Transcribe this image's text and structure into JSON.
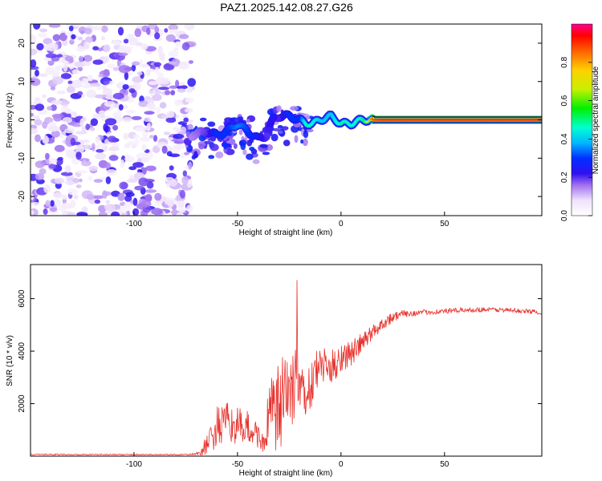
{
  "title": "PAZ1.2025.142.08.27.G26",
  "chart_data": [
    {
      "type": "heatmap",
      "xlabel": "Height of straight line (km)",
      "ylabel": "Frequency (Hz)",
      "xlim": [
        -150,
        97
      ],
      "ylim": [
        -25,
        25
      ],
      "xticks": [
        -100,
        -50,
        0,
        50
      ],
      "yticks": [
        -20,
        -10,
        0,
        10,
        20
      ],
      "xtick_labels": [
        "-100",
        "-50",
        "0",
        "50"
      ],
      "ytick_labels": [
        "-20",
        "-10",
        "0",
        "10",
        "20"
      ],
      "colorbar": {
        "label": "Normalized spectral amplitude",
        "range": [
          0,
          1
        ],
        "ticks": [
          0.0,
          0.2,
          0.4,
          0.6,
          0.8
        ],
        "tick_labels": [
          "0.0",
          "0.2",
          "0.4",
          "0.6",
          "0.8"
        ]
      },
      "noise_region": {
        "x": [
          -150,
          -72
        ],
        "y": [
          -25,
          25
        ],
        "amplitude": [
          0.0,
          0.2
        ]
      },
      "signal_ridge": {
        "x": [
          -72,
          -65,
          -60,
          -55,
          -50,
          -45,
          -40,
          -36,
          -33,
          -30,
          -25,
          -20,
          -17,
          -14,
          -10,
          -5,
          0,
          5,
          10,
          15,
          20,
          30,
          50,
          97
        ],
        "f": [
          -4,
          -3,
          -4,
          -3,
          -1,
          -3,
          -5,
          -4,
          0,
          1,
          1,
          0,
          -1,
          -1,
          0,
          1,
          -1,
          -1,
          0,
          0,
          0,
          0,
          0,
          0
        ],
        "amplitude": [
          0.15,
          0.2,
          0.3,
          0.3,
          0.35,
          0.3,
          0.25,
          0.2,
          0.25,
          0.2,
          0.3,
          0.3,
          0.5,
          0.45,
          0.4,
          0.4,
          0.5,
          0.45,
          0.5,
          0.9,
          0.95,
          0.95,
          0.95,
          0.95
        ]
      }
    },
    {
      "type": "line",
      "xlabel": "Height of straight line (km)",
      "ylabel": "SNR (10 * v/v)",
      "xlim": [
        -150,
        97
      ],
      "ylim": [
        0,
        7300
      ],
      "xticks": [
        -100,
        -50,
        0,
        50
      ],
      "yticks": [
        2000,
        4000,
        6000
      ],
      "xtick_labels": [
        "-100",
        "-50",
        "0",
        "50"
      ],
      "ytick_labels": [
        "2000",
        "4000",
        "6000"
      ],
      "series": [
        {
          "color": "#e8312c",
          "x": [
            -150,
            -140,
            -130,
            -120,
            -110,
            -100,
            -90,
            -80,
            -75,
            -70,
            -68,
            -65,
            -62,
            -60,
            -55,
            -50,
            -45,
            -40,
            -37,
            -35,
            -33,
            -30,
            -28,
            -25,
            -22,
            -20,
            -18,
            -15,
            -12,
            -10,
            -5,
            0,
            5,
            10,
            15,
            20,
            25,
            30,
            35,
            40,
            50,
            60,
            70,
            80,
            90,
            97
          ],
          "y": [
            60,
            70,
            60,
            65,
            60,
            60,
            60,
            60,
            60,
            80,
            150,
            400,
            800,
            1100,
            1250,
            1150,
            1050,
            800,
            400,
            1500,
            1700,
            1600,
            2100,
            2600,
            2900,
            3100,
            2300,
            2500,
            3200,
            3500,
            3300,
            3800,
            3900,
            4300,
            4700,
            5050,
            5300,
            5420,
            5450,
            5480,
            5520,
            5570,
            5590,
            5560,
            5520,
            5480
          ],
          "noise_amplitude": [
            20,
            20,
            20,
            20,
            20,
            20,
            20,
            20,
            20,
            40,
            150,
            400,
            700,
            800,
            800,
            700,
            700,
            500,
            300,
            1200,
            1500,
            2000,
            1800,
            1200,
            2200,
            2000,
            800,
            900,
            900,
            700,
            700,
            600,
            500,
            400,
            300,
            250,
            200,
            150,
            120,
            100,
            100,
            90,
            90,
            90,
            90,
            90
          ]
        }
      ]
    }
  ]
}
